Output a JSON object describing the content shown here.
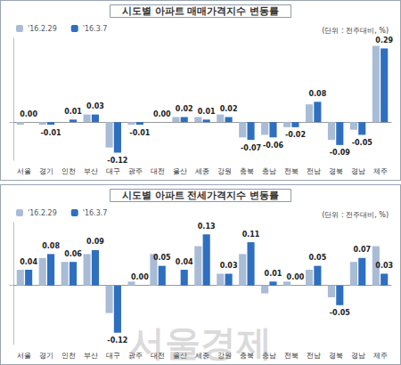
{
  "chart_data": [
    {
      "type": "bar",
      "title": "시도별 아파트 매매가격지수 변동률",
      "subtitle": "(단위 : 전주대비, %)",
      "categories": [
        "서울",
        "경기",
        "인천",
        "부산",
        "대구",
        "광주",
        "대전",
        "울산",
        "세종",
        "강원",
        "충북",
        "충남",
        "전북",
        "전남",
        "경북",
        "경남",
        "제주"
      ],
      "series": [
        {
          "name": "'16.2.29",
          "color": "#a9bcd6",
          "values": [
            -0.01,
            -0.01,
            0.0,
            0.03,
            -0.1,
            -0.01,
            0.0,
            0.02,
            0.02,
            0.03,
            -0.06,
            -0.05,
            -0.02,
            0.07,
            -0.07,
            -0.03,
            0.3
          ]
        },
        {
          "name": "'16.3.7",
          "color": "#2e6fc0",
          "data_labels": true,
          "values": [
            0.0,
            -0.01,
            0.01,
            0.03,
            -0.12,
            -0.01,
            0.0,
            0.02,
            0.01,
            0.02,
            -0.07,
            -0.06,
            -0.02,
            0.08,
            -0.09,
            -0.05,
            0.29
          ],
          "value_labels": [
            "0.00",
            "-0.01",
            "0.01",
            "0.03",
            "-0.12",
            "-0.01",
            "0.00",
            "0.02",
            "0.01",
            "0.02",
            "-0.07",
            "-0.06",
            "-0.02",
            "0.08",
            "-0.09",
            "-0.05",
            "0.29"
          ]
        }
      ],
      "ylim": [
        -0.15,
        0.33
      ],
      "yticks": [
        0
      ],
      "grid": false,
      "legend": "top-left",
      "tick_labels": "x"
    },
    {
      "type": "bar",
      "title": "시도별 아파트 전세가격지수 변동률",
      "subtitle": "(단위 : 전주대비, %)",
      "categories": [
        "서울",
        "경기",
        "인천",
        "부산",
        "대구",
        "광주",
        "대전",
        "울산",
        "세종",
        "강원",
        "충북",
        "충남",
        "전북",
        "전남",
        "경북",
        "경남",
        "제주"
      ],
      "series": [
        {
          "name": "'16.2.29",
          "color": "#a9bcd6",
          "values": [
            0.04,
            0.07,
            0.06,
            0.08,
            -0.07,
            0.01,
            0.08,
            0.0,
            0.1,
            0.03,
            0.08,
            -0.02,
            0.01,
            0.04,
            -0.03,
            0.06,
            0.1
          ]
        },
        {
          "name": "'16.3.7",
          "color": "#2e6fc0",
          "data_labels": true,
          "values": [
            0.04,
            0.08,
            0.06,
            0.09,
            -0.12,
            0.0,
            0.05,
            0.04,
            0.13,
            0.03,
            0.11,
            0.01,
            0.0,
            0.05,
            -0.05,
            0.07,
            0.03
          ],
          "value_labels": [
            "0.04",
            "0.08",
            "0.06",
            "0.09",
            "-0.12",
            "0.00",
            "0.05",
            "0.04",
            "0.13",
            "0.03",
            "0.11",
            "0.01",
            "0.00",
            "0.05",
            "-0.05",
            "0.07",
            "0.03"
          ]
        }
      ],
      "ylim": [
        -0.15,
        0.16
      ],
      "yticks": [
        0
      ],
      "grid": false,
      "legend": "top-left",
      "tick_labels": "x"
    }
  ],
  "watermark": "서울경제"
}
